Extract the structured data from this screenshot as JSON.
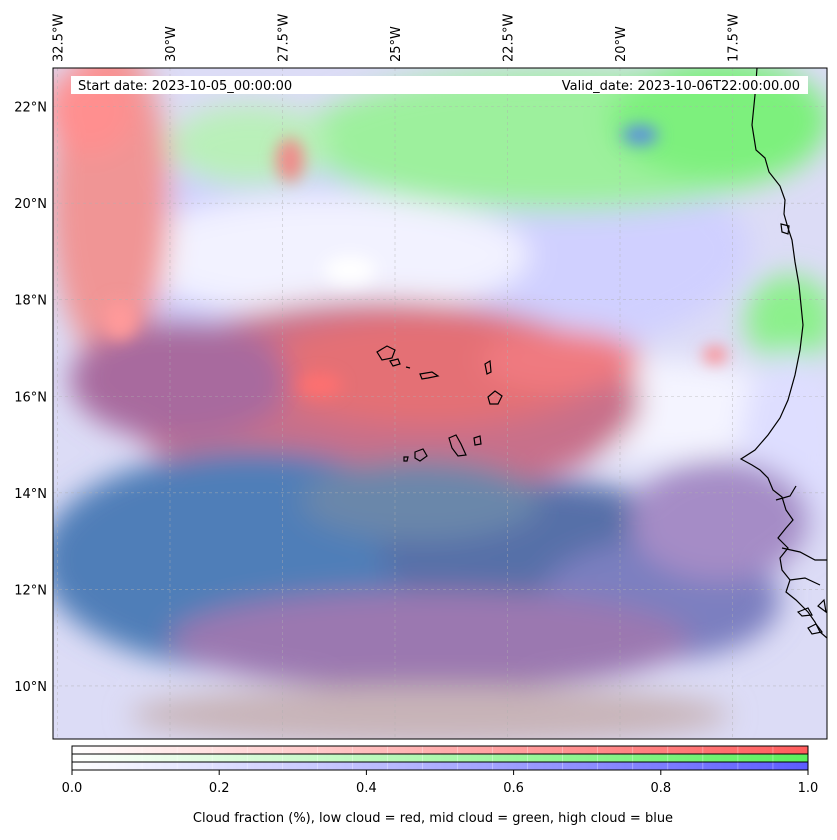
{
  "map": {
    "start_label": "Start date: 2023-10-05_00:00:00",
    "valid_label": "Valid_date: 2023-10-06T22:00:00.00",
    "lon_ticks": [
      {
        "lon": -32.5,
        "label": "32.5°W"
      },
      {
        "lon": -30.0,
        "label": "30°W"
      },
      {
        "lon": -27.5,
        "label": "27.5°W"
      },
      {
        "lon": -25.0,
        "label": "25°W"
      },
      {
        "lon": -22.5,
        "label": "22.5°W"
      },
      {
        "lon": -20.0,
        "label": "20°W"
      },
      {
        "lon": -17.5,
        "label": "17.5°W"
      }
    ],
    "lat_ticks": [
      {
        "lat": 22,
        "label": "22°N"
      },
      {
        "lat": 20,
        "label": "20°N"
      },
      {
        "lat": 18,
        "label": "18°N"
      },
      {
        "lat": 16,
        "label": "16°N"
      },
      {
        "lat": 14,
        "label": "14°N"
      },
      {
        "lat": 12,
        "label": "12°N"
      },
      {
        "lat": 10,
        "label": "10°N"
      }
    ],
    "extent": {
      "lon_min": -32.6,
      "lon_max": -15.4,
      "lat_min": 8.9,
      "lat_max": 22.8
    }
  },
  "colorbar": {
    "label": "Cloud fraction (%), low cloud = red, mid cloud = green, high cloud = blue",
    "ticks": [
      "0.0",
      "0.2",
      "0.4",
      "0.6",
      "0.8",
      "1.0"
    ],
    "tick_values": [
      0.0,
      0.2,
      0.4,
      0.6,
      0.8,
      1.0
    ],
    "colors": {
      "low": "#ff5c5c",
      "mid": "#5cf05c",
      "high": "#5c5cff"
    }
  }
}
